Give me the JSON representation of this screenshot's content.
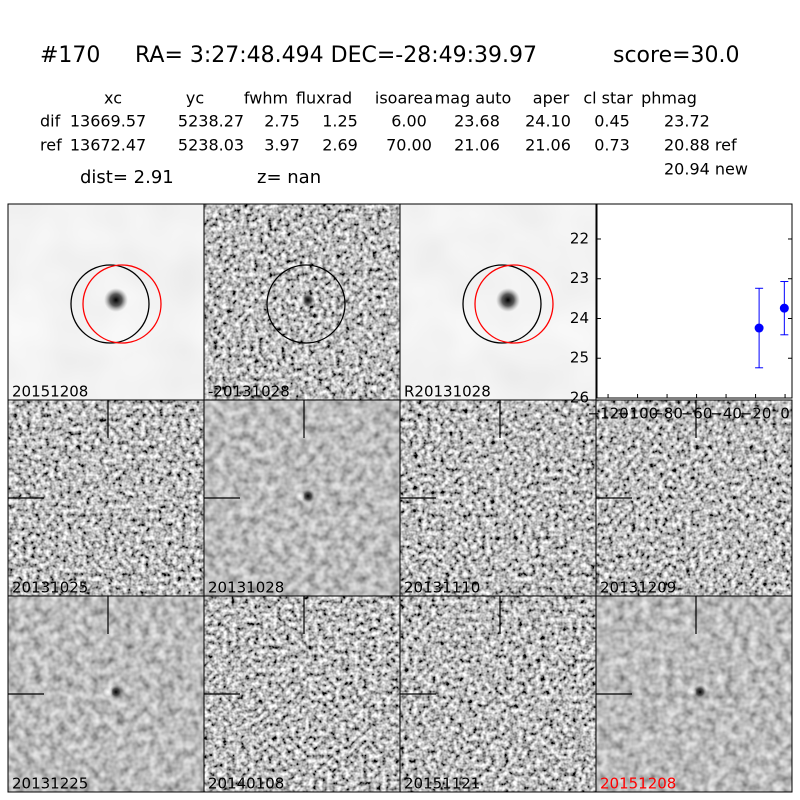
{
  "header": {
    "id": "#170",
    "coords": "RA= 3:27:48.494 DEC=-28:49:39.97",
    "score": "score=30.0"
  },
  "table": {
    "columns": [
      "xc",
      "yc",
      "fwhm",
      "fluxrad",
      "isoarea",
      "mag auto",
      "aper",
      "cl star",
      "phmag"
    ],
    "rows": [
      [
        "dif",
        "13669.57",
        "5238.27",
        "2.75",
        "1.25",
        "6.00",
        "23.68",
        "24.10",
        "0.45",
        "23.72"
      ],
      [
        "ref",
        "13672.47",
        "5238.03",
        "3.97",
        "2.69",
        "70.00",
        "21.06",
        "21.06",
        "0.73",
        "20.88 ref"
      ]
    ],
    "extra": "20.94 new",
    "dist": "dist=  2.91",
    "z": "z=   nan"
  },
  "stamps": [
    {
      "label": "20151208",
      "color": "#000000"
    },
    {
      "label": "-20131028",
      "color": "#000000"
    },
    {
      "label": "R20131028",
      "color": "#000000"
    },
    {
      "label": "20131025",
      "color": "#000000"
    },
    {
      "label": "20131028",
      "color": "#000000"
    },
    {
      "label": "20131110",
      "color": "#000000"
    },
    {
      "label": "20131209",
      "color": "#000000"
    },
    {
      "label": "20131225",
      "color": "#000000"
    },
    {
      "label": "20140108",
      "color": "#000000"
    },
    {
      "label": "20151121",
      "color": "#000000"
    },
    {
      "label": "20151208",
      "color": "#ff0000"
    }
  ],
  "chart_data": {
    "type": "errorbar",
    "x": [
      -17.6,
      -0.5
    ],
    "values": [
      24.24,
      23.74
    ],
    "errors": [
      1.0,
      0.67
    ],
    "color": "#0000ff",
    "xlim": [
      -127.5,
      4.7
    ],
    "ylim": [
      26,
      21.12
    ],
    "xticks": [
      {
        "value": -120,
        "label": "−120"
      },
      {
        "value": -100,
        "label": "−100"
      },
      {
        "value": -80,
        "label": "−80"
      },
      {
        "value": -60,
        "label": "−60"
      },
      {
        "value": -40,
        "label": "−40"
      },
      {
        "value": -20,
        "label": "−20"
      },
      0
    ],
    "yticks": [
      22,
      23,
      24,
      25,
      26
    ]
  }
}
